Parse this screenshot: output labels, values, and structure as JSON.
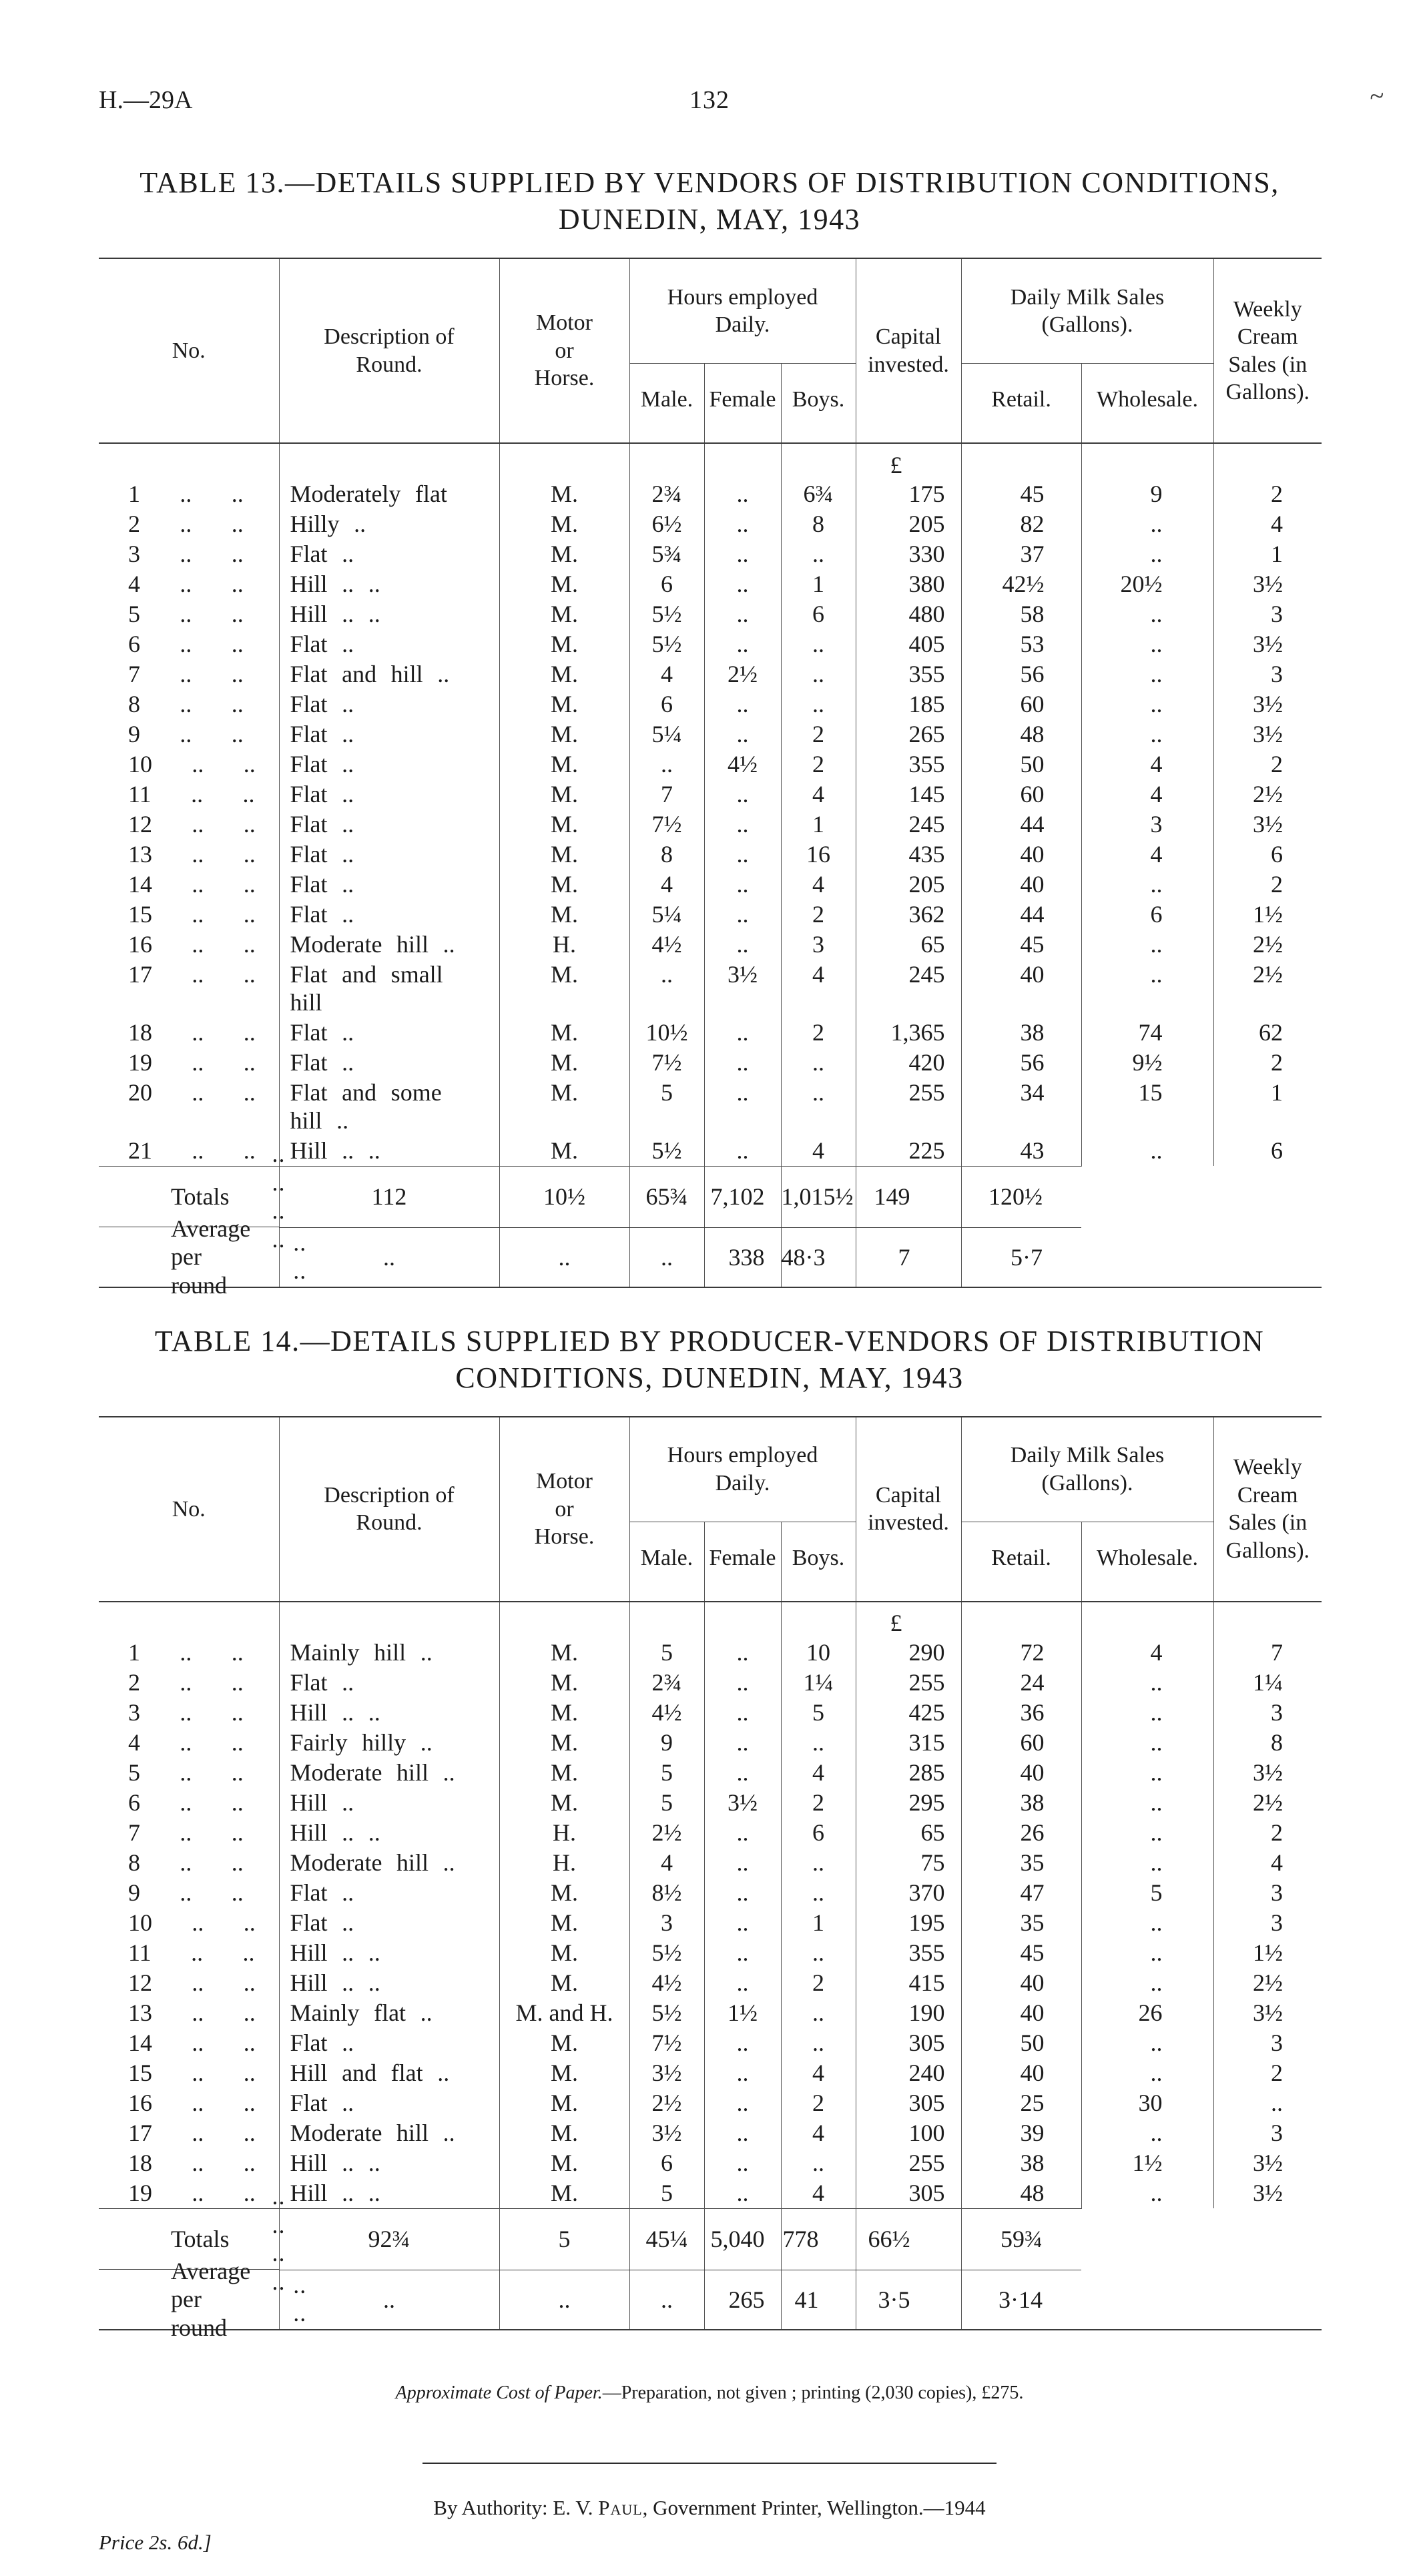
{
  "page": {
    "doc_ref": "H.—29A",
    "page_number": "132",
    "stray_mark": "~"
  },
  "table_header": {
    "no": "No.",
    "description": "Description of\nRound.",
    "motor": "Motor\nor\nHorse.",
    "hours_group": "Hours employed\nDaily.",
    "male": "Male.",
    "female": "Female",
    "boys": "Boys.",
    "capital": "Capital\ninvested.",
    "sales_group": "Daily Milk Sales\n(Gallons).",
    "retail": "Retail.",
    "wholesale": "Wholesale.",
    "weekly": "Weekly\nCream\nSales (in\nGallons)."
  },
  "table13": {
    "title_line1": "TABLE 13.—DETAILS SUPPLIED BY VENDORS OF DISTRIBUTION CONDITIONS,",
    "title_line2": "DUNEDIN, MAY, 1943",
    "currency": "£",
    "rows": [
      [
        "1 .. ..",
        "Moderately flat",
        "M.",
        "2¾",
        "..",
        "6¾",
        "175",
        "45",
        "9",
        "2"
      ],
      [
        "2 .. ..",
        "Hilly ..",
        "M.",
        "6½",
        "..",
        "8",
        "205",
        "82",
        "..",
        "4"
      ],
      [
        "3 .. ..",
        "Flat ..",
        "M.",
        "5¾",
        "..",
        "..",
        "330",
        "37",
        "..",
        "1"
      ],
      [
        "4 .. ..",
        "Hill .. ..",
        "M.",
        "6",
        "..",
        "1",
        "380",
        "42½",
        "20½",
        "3½"
      ],
      [
        "5 .. ..",
        "Hill .. ..",
        "M.",
        "5½",
        "..",
        "6",
        "480",
        "58",
        "..",
        "3"
      ],
      [
        "6 .. ..",
        "Flat ..",
        "M.",
        "5½",
        "..",
        "..",
        "405",
        "53",
        "..",
        "3½"
      ],
      [
        "7 .. ..",
        "Flat and hill ..",
        "M.",
        "4",
        "2½",
        "..",
        "355",
        "56",
        "..",
        "3"
      ],
      [
        "8 .. ..",
        "Flat ..",
        "M.",
        "6",
        "..",
        "..",
        "185",
        "60",
        "..",
        "3½"
      ],
      [
        "9 .. ..",
        "Flat ..",
        "M.",
        "5¼",
        "..",
        "2",
        "265",
        "48",
        "..",
        "3½"
      ],
      [
        "10 .. ..",
        "Flat ..",
        "M.",
        "..",
        "4½",
        "2",
        "355",
        "50",
        "4",
        "2"
      ],
      [
        "11 .. ..",
        "Flat ..",
        "M.",
        "7",
        "..",
        "4",
        "145",
        "60",
        "4",
        "2½"
      ],
      [
        "12 .. ..",
        "Flat ..",
        "M.",
        "7½",
        "..",
        "1",
        "245",
        "44",
        "3",
        "3½"
      ],
      [
        "13 .. ..",
        "Flat ..",
        "M.",
        "8",
        "..",
        "16",
        "435",
        "40",
        "4",
        "6"
      ],
      [
        "14 .. ..",
        "Flat ..",
        "M.",
        "4",
        "..",
        "4",
        "205",
        "40",
        "..",
        "2"
      ],
      [
        "15 .. ..",
        "Flat ..",
        "M.",
        "5¼",
        "..",
        "2",
        "362",
        "44",
        "6",
        "1½"
      ],
      [
        "16 .. ..",
        "Moderate hill ..",
        "H.",
        "4½",
        "..",
        "3",
        "65",
        "45",
        "..",
        "2½"
      ],
      [
        "17 .. ..",
        "Flat and small\nhill",
        "M.",
        "..",
        "3½",
        "4",
        "245",
        "40",
        "..",
        "2½"
      ],
      [
        "18 .. ..",
        "Flat ..",
        "M.",
        "10½",
        "..",
        "2",
        "1,365",
        "38",
        "74",
        "62"
      ],
      [
        "19 .. ..",
        "Flat ..",
        "M.",
        "7½",
        "..",
        "..",
        "420",
        "56",
        "9½",
        "2"
      ],
      [
        "20 .. ..",
        "Flat and some\nhill ..",
        "M.",
        "5",
        "..",
        "..",
        "255",
        "34",
        "15",
        "1"
      ],
      [
        "21 .. ..",
        "Hill .. ..",
        "M.",
        "5½",
        "..",
        "4",
        "225",
        "43",
        "..",
        "6"
      ]
    ],
    "totals_label": "Totals",
    "totals_dots": ".. .. .. ..",
    "totals": [
      "112",
      "10½",
      "65¾",
      "7,102",
      "1,015½",
      "149",
      "120½"
    ],
    "average_label": "Average per round",
    "average_dots": ".. ..",
    "average": [
      "..",
      "..",
      "..",
      "338",
      "48·3",
      "7",
      "5·7"
    ]
  },
  "table14": {
    "title_line1": "TABLE 14.—DETAILS SUPPLIED BY PRODUCER-VENDORS OF DISTRIBUTION",
    "title_line2": "CONDITIONS, DUNEDIN, MAY, 1943",
    "currency": "£",
    "rows": [
      [
        "1 .. ..",
        "Mainly hill ..",
        "M.",
        "5",
        "..",
        "10",
        "290",
        "72",
        "4",
        "7"
      ],
      [
        "2 .. ..",
        "Flat ..",
        "M.",
        "2¾",
        "..",
        "1¼",
        "255",
        "24",
        "..",
        "1¼"
      ],
      [
        "3 .. ..",
        "Hill .. ..",
        "M.",
        "4½",
        "..",
        "5",
        "425",
        "36",
        "..",
        "3"
      ],
      [
        "4 .. ..",
        "Fairly hilly ..",
        "M.",
        "9",
        "..",
        "..",
        "315",
        "60",
        "..",
        "8"
      ],
      [
        "5 .. ..",
        "Moderate hill ..",
        "M.",
        "5",
        "..",
        "4",
        "285",
        "40",
        "..",
        "3½"
      ],
      [
        "6 .. ..",
        "Hill ..",
        "M.",
        "5",
        "3½",
        "2",
        "295",
        "38",
        "..",
        "2½"
      ],
      [
        "7 .. ..",
        "Hill .. ..",
        "H.",
        "2½",
        "..",
        "6",
        "65",
        "26",
        "..",
        "2"
      ],
      [
        "8 .. ..",
        "Moderate hill ..",
        "H.",
        "4",
        "..",
        "..",
        "75",
        "35",
        "..",
        "4"
      ],
      [
        "9 .. ..",
        "Flat ..",
        "M.",
        "8½",
        "..",
        "..",
        "370",
        "47",
        "5",
        "3"
      ],
      [
        "10 .. ..",
        "Flat ..",
        "M.",
        "3",
        "..",
        "1",
        "195",
        "35",
        "..",
        "3"
      ],
      [
        "11 .. ..",
        "Hill .. ..",
        "M.",
        "5½",
        "..",
        "..",
        "355",
        "45",
        "..",
        "1½"
      ],
      [
        "12 .. ..",
        "Hill .. ..",
        "M.",
        "4½",
        "..",
        "2",
        "415",
        "40",
        "..",
        "2½"
      ],
      [
        "13 .. ..",
        "Mainly flat ..",
        "M. and H.",
        "5½",
        "1½",
        "..",
        "190",
        "40",
        "26",
        "3½"
      ],
      [
        "14 .. ..",
        "Flat ..",
        "M.",
        "7½",
        "..",
        "..",
        "305",
        "50",
        "..",
        "3"
      ],
      [
        "15 .. ..",
        "Hill and flat ..",
        "M.",
        "3½",
        "..",
        "4",
        "240",
        "40",
        "..",
        "2"
      ],
      [
        "16 .. ..",
        "Flat ..",
        "M.",
        "2½",
        "..",
        "2",
        "305",
        "25",
        "30",
        ".."
      ],
      [
        "17 .. ..",
        "Moderate hill ..",
        "M.",
        "3½",
        "..",
        "4",
        "100",
        "39",
        "..",
        "3"
      ],
      [
        "18 .. ..",
        "Hill .. ..",
        "M.",
        "6",
        "..",
        "..",
        "255",
        "38",
        "1½",
        "3½"
      ],
      [
        "19 .. ..",
        "Hill .. ..",
        "M.",
        "5",
        "..",
        "4",
        "305",
        "48",
        "..",
        "3½"
      ]
    ],
    "totals_label": "Totals",
    "totals_dots": ".. .. .. ..",
    "totals": [
      "92¾",
      "5",
      "45¼",
      "5,040",
      "778",
      "66½",
      "59¾"
    ],
    "average_label": "Average per round",
    "average_dots": ".. ..",
    "average": [
      "..",
      "..",
      "..",
      "265",
      "41",
      "3·5",
      "3·14"
    ]
  },
  "footer": {
    "cost_note_italic": "Approximate Cost of Paper.",
    "cost_note_rest": "—Preparation, not given ; printing (2,030 copies), £275.",
    "authority_prefix": "By Authority: E. V. ",
    "authority_name": "Paul",
    "authority_rest": ", Government Printer, Wellington.—1944",
    "price": "Price 2s. 6d.]"
  }
}
